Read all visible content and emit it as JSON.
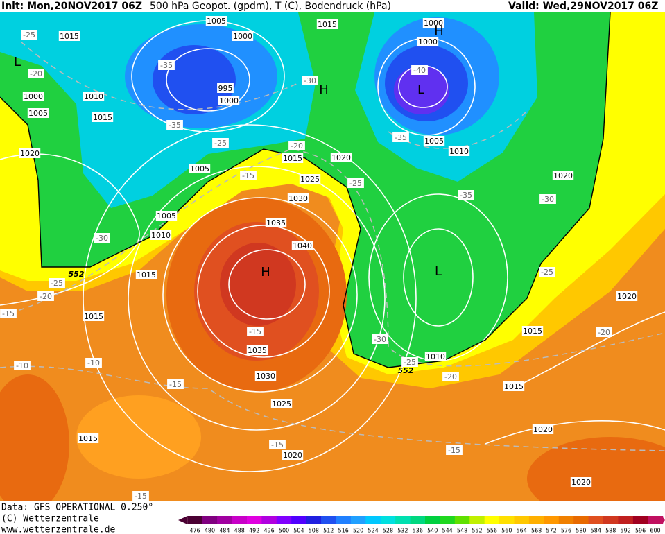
{
  "header": {
    "left": "Init: Mon,20NOV2017 06Z",
    "center": "500 hPa Geopot. (gpdm), T (C), Bodendruck (hPa)",
    "right": "Valid: Wed,29NOV2017 06Z"
  },
  "map": {
    "isobar_labels": [
      "1005",
      "1000",
      "1015",
      "1015",
      "1000",
      "1000",
      "995",
      "1000",
      "1010",
      "1000",
      "1005",
      "1015",
      "1020",
      "1005",
      "1015",
      "1020",
      "1025",
      "1030",
      "1005",
      "1010",
      "1020",
      "1005",
      "1010",
      "1035",
      "1040",
      "1015",
      "1015",
      "1035",
      "1030",
      "1025",
      "1020",
      "1015",
      "1010",
      "1015",
      "1015",
      "1020",
      "1020",
      "1020"
    ],
    "isotherm_labels": [
      "-25",
      "-20",
      "-35",
      "-35",
      "-25",
      "-30",
      "-20",
      "-40",
      "-35",
      "-15",
      "-25",
      "-35",
      "-30",
      "-30",
      "-25",
      "-20",
      "-15",
      "-25",
      "-15",
      "-30",
      "-20",
      "-10",
      "-10",
      "-15",
      "-25",
      "-20",
      "-15",
      "-15",
      "-15"
    ],
    "pressure_centers": [
      "H",
      "L",
      "H",
      "L",
      "H",
      "L"
    ],
    "contour_552_labels": [
      "552",
      "552"
    ]
  },
  "footer": {
    "lines": [
      "Data: GFS OPERATIONAL 0.250°",
      "(C) Wetterzentrale",
      "www.wetterzentrale.de"
    ]
  },
  "colorbar": {
    "labels": [
      "476",
      "480",
      "484",
      "488",
      "492",
      "496",
      "500",
      "504",
      "508",
      "512",
      "516",
      "520",
      "524",
      "528",
      "532",
      "536",
      "540",
      "544",
      "548",
      "552",
      "556",
      "560",
      "564",
      "568",
      "572",
      "576",
      "580",
      "584",
      "588",
      "592",
      "596",
      "600"
    ],
    "colors": [
      "#4b0033",
      "#800080",
      "#a000a0",
      "#c800c8",
      "#e000e0",
      "#b000e0",
      "#8000ff",
      "#5000ff",
      "#2020e0",
      "#2050f0",
      "#2080ff",
      "#20a0ff",
      "#00c8ff",
      "#00e0e0",
      "#00e0b0",
      "#00d880",
      "#00d040",
      "#20d820",
      "#60e000",
      "#c0f000",
      "#ffff00",
      "#ffe000",
      "#ffc800",
      "#ffb000",
      "#ff9800",
      "#f08000",
      "#e86a00",
      "#e05020",
      "#d03820",
      "#c02020",
      "#a00020",
      "#c01060"
    ]
  }
}
